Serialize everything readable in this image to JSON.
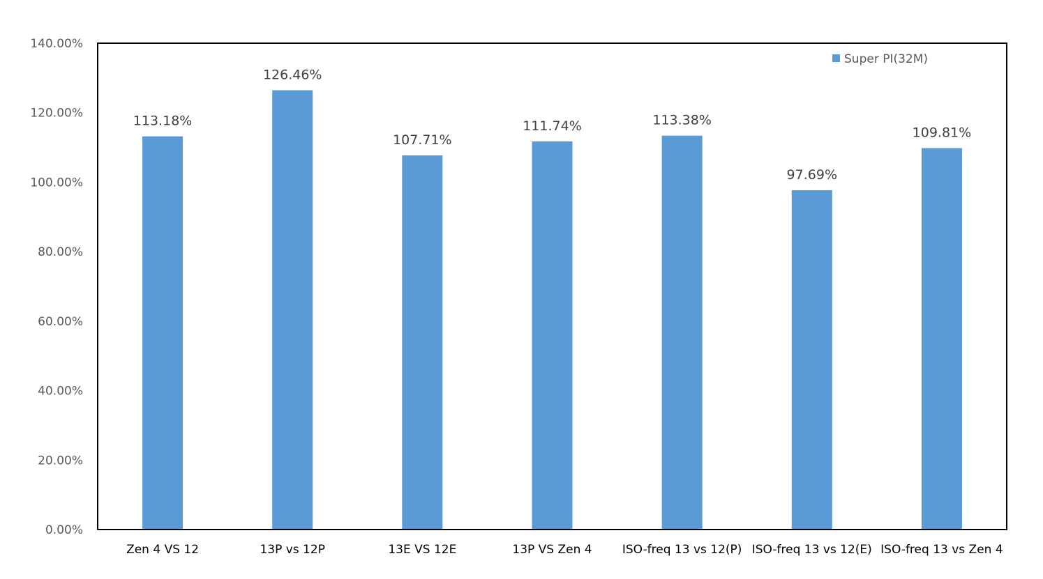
{
  "chart_data": {
    "type": "bar",
    "categories": [
      "Zen 4 VS 12",
      "13P vs 12P",
      "13E VS 12E",
      "13P VS Zen 4",
      "ISO-freq 13 vs 12(P)",
      "ISO-freq 13 vs 12(E)",
      "ISO-freq 13 vs Zen 4"
    ],
    "series": [
      {
        "name": "Super PI(32M)",
        "values": [
          113.18,
          126.46,
          107.71,
          111.74,
          113.38,
          97.69,
          109.81
        ],
        "labels": [
          "113.18%",
          "126.46%",
          "107.71%",
          "111.74%",
          "113.38%",
          "97.69%",
          "109.81%"
        ]
      }
    ],
    "ylim": [
      0,
      140
    ],
    "yticks": [
      {
        "value": 0,
        "label": "0.00%"
      },
      {
        "value": 20,
        "label": "20.00%"
      },
      {
        "value": 40,
        "label": "40.00%"
      },
      {
        "value": 60,
        "label": "60.00%"
      },
      {
        "value": 80,
        "label": "80.00%"
      },
      {
        "value": 100,
        "label": "100.00%"
      },
      {
        "value": 120,
        "label": "120.00%"
      },
      {
        "value": 140,
        "label": "140.00%"
      }
    ],
    "grid": false,
    "legend_position": "top-right",
    "bar_color": "#5B9BD5",
    "title": "",
    "xlabel": "",
    "ylabel": ""
  }
}
